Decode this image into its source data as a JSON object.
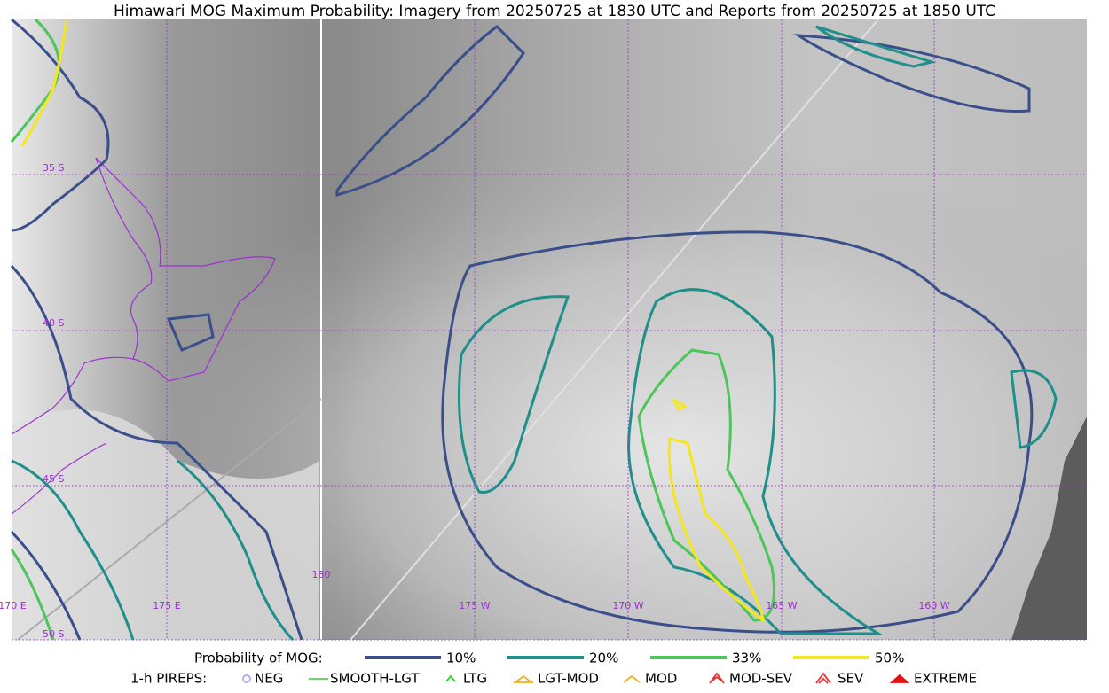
{
  "title": "Himawari MOG Maximum Probability: Imagery from 20250725 at 1830 UTC and Reports from 20250725 at 1850 UTC",
  "map": {
    "lat_labels": [
      "35 S",
      "40 S",
      "45 S",
      "50 S"
    ],
    "lon_labels": [
      "170 E",
      "175 E",
      "180",
      "175 W",
      "170 W",
      "165 W",
      "160 W"
    ]
  },
  "legend": {
    "mog": {
      "title": "Probability of MOG:",
      "items": [
        {
          "label": "10%",
          "color": "#3a4f8a"
        },
        {
          "label": "20%",
          "color": "#1e8f8a"
        },
        {
          "label": "33%",
          "color": "#4cc55a"
        },
        {
          "label": "50%",
          "color": "#f5e61e"
        }
      ]
    },
    "pireps": {
      "title": "1-h PIREPS:",
      "items": [
        {
          "label": "NEG",
          "color": "#b0b0f0"
        },
        {
          "label": "SMOOTH-LGT",
          "color": "#33cc33"
        },
        {
          "label": "LTG",
          "color": "#22dd22"
        },
        {
          "label": "LGT-MOD",
          "color": "#f0b020"
        },
        {
          "label": "MOD",
          "color": "#f0b020"
        },
        {
          "label": "MOD-SEV",
          "color": "#e83030"
        },
        {
          "label": "SEV",
          "color": "#e83030"
        },
        {
          "label": "EXTREME",
          "color": "#e81010"
        }
      ]
    }
  }
}
